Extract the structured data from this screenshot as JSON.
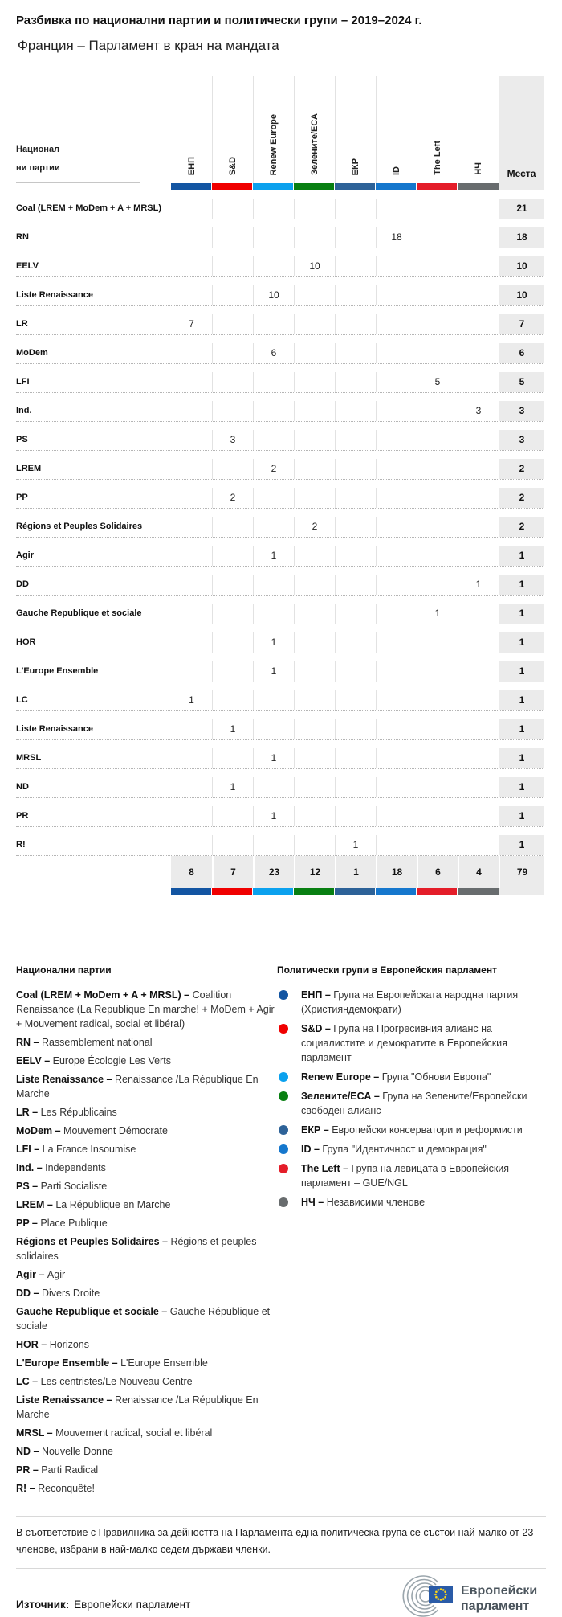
{
  "header": {
    "title": "Разбивка по национални партии и политически групи – 2019–2024 г.",
    "subtitle": "Франция – Парламент в края на мандата"
  },
  "chart_data": {
    "type": "table",
    "title": "Разбивка по национални партии и политически групи – 2019–2024 г.",
    "subtitle": "Франция – Парламент в края на мандата",
    "row_header": "Национални партии",
    "seats_header": "Места",
    "groups": [
      {
        "abbr": "ЕНП",
        "color": "#1355a2"
      },
      {
        "abbr": "S&D",
        "color": "#f00000"
      },
      {
        "abbr": "Renew Europe",
        "color": "#0ba1ee"
      },
      {
        "abbr": "Зелените/ЕСА",
        "color": "#087f12"
      },
      {
        "abbr": "ЕКР",
        "color": "#2d6298"
      },
      {
        "abbr": "ID",
        "color": "#1577cd"
      },
      {
        "abbr": "The Left",
        "color": "#e41d29"
      },
      {
        "abbr": "НЧ",
        "color": "#686c6e"
      }
    ],
    "rows": [
      {
        "label": "Coal (LREM + MoDem + A + MRSL)",
        "group": null,
        "value": null,
        "seats": 21
      },
      {
        "label": "RN",
        "group": "ID",
        "value": 18,
        "seats": 18
      },
      {
        "label": "EELV",
        "group": "Зелените/ЕСА",
        "value": 10,
        "seats": 10
      },
      {
        "label": "Liste Renaissance",
        "group": "Renew Europe",
        "value": 10,
        "seats": 10
      },
      {
        "label": "LR",
        "group": "ЕНП",
        "value": 7,
        "seats": 7
      },
      {
        "label": "MoDem",
        "group": "Renew Europe",
        "value": 6,
        "seats": 6
      },
      {
        "label": "LFI",
        "group": "The Left",
        "value": 5,
        "seats": 5
      },
      {
        "label": "Ind.",
        "group": "НЧ",
        "value": 3,
        "seats": 3
      },
      {
        "label": "PS",
        "group": "S&D",
        "value": 3,
        "seats": 3
      },
      {
        "label": "LREM",
        "group": "Renew Europe",
        "value": 2,
        "seats": 2
      },
      {
        "label": "PP",
        "group": "S&D",
        "value": 2,
        "seats": 2
      },
      {
        "label": "Régions et Peuples Solidaires",
        "group": "Зелените/ЕСА",
        "value": 2,
        "seats": 2
      },
      {
        "label": "Agir",
        "group": "Renew Europe",
        "value": 1,
        "seats": 1
      },
      {
        "label": "DD",
        "group": "НЧ",
        "value": 1,
        "seats": 1
      },
      {
        "label": "Gauche Republique et sociale",
        "group": "The Left",
        "value": 1,
        "seats": 1
      },
      {
        "label": "HOR",
        "group": "Renew Europe",
        "value": 1,
        "seats": 1
      },
      {
        "label": "L'Europe Ensemble",
        "group": "Renew Europe",
        "value": 1,
        "seats": 1
      },
      {
        "label": "LC",
        "group": "ЕНП",
        "value": 1,
        "seats": 1
      },
      {
        "label": "Liste Renaissance",
        "group": "S&D",
        "value": 1,
        "seats": 1
      },
      {
        "label": "MRSL",
        "group": "Renew Europe",
        "value": 1,
        "seats": 1
      },
      {
        "label": "ND",
        "group": "S&D",
        "value": 1,
        "seats": 1
      },
      {
        "label": "PR",
        "group": "Renew Europe",
        "value": 1,
        "seats": 1
      },
      {
        "label": "R!",
        "group": "ЕКР",
        "value": 1,
        "seats": 1
      }
    ],
    "totals": {
      "values": [
        8,
        7,
        23,
        12,
        1,
        18,
        6,
        4
      ],
      "seats": 79
    }
  },
  "legend_parties": {
    "heading": "Национални партии",
    "entries": [
      {
        "abbr": "Coal (LREM + MoDem + A + MRSL)",
        "name": "Coalition Renaissance (La Republique En marche! + MoDem + Agir + Mouvement radical, social et libéral)"
      },
      {
        "abbr": "RN",
        "name": "Rassemblement national"
      },
      {
        "abbr": "EELV",
        "name": "Europe Écologie Les Verts"
      },
      {
        "abbr": "Liste Renaissance",
        "name": "Renaissance /La République En Marche"
      },
      {
        "abbr": "LR",
        "name": "Les Républicains"
      },
      {
        "abbr": "MoDem",
        "name": "Mouvement Démocrate"
      },
      {
        "abbr": "LFI",
        "name": "La France Insoumise"
      },
      {
        "abbr": "Ind.",
        "name": "Independents"
      },
      {
        "abbr": "PS",
        "name": "Parti Socialiste"
      },
      {
        "abbr": "LREM",
        "name": "La République en Marche"
      },
      {
        "abbr": "PP",
        "name": "Place Publique"
      },
      {
        "abbr": "Régions et Peuples Solidaires",
        "name": "Régions et peuples solidaires"
      },
      {
        "abbr": "Agir",
        "name": "Agir"
      },
      {
        "abbr": "DD",
        "name": "Divers Droite"
      },
      {
        "abbr": "Gauche Republique et sociale",
        "name": "Gauche République et sociale"
      },
      {
        "abbr": "HOR",
        "name": "Horizons"
      },
      {
        "abbr": "L'Europe Ensemble",
        "name": "L'Europe Ensemble"
      },
      {
        "abbr": "LC",
        "name": "Les centristes/Le Nouveau Centre"
      },
      {
        "abbr": "Liste Renaissance",
        "name": "Renaissance /La République En Marche"
      },
      {
        "abbr": "MRSL",
        "name": "Mouvement radical, social et libéral"
      },
      {
        "abbr": "ND",
        "name": "Nouvelle Donne"
      },
      {
        "abbr": "PR",
        "name": "Parti Radical"
      },
      {
        "abbr": "R!",
        "name": "Reconquête!"
      }
    ]
  },
  "legend_groups": {
    "heading": "Политически групи в Европейския парламент",
    "entries": [
      {
        "abbr": "ЕНП",
        "color": "#1355a2",
        "name": "Група на Европейската народна партия (Християндемократи)"
      },
      {
        "abbr": "S&D",
        "color": "#f00000",
        "name": "Група на Прогресивния алианс на социалистите и демократите в Европейския парламент"
      },
      {
        "abbr": "Renew Europe",
        "color": "#0ba1ee",
        "name": "Група \"Обнови Европа\""
      },
      {
        "abbr": "Зелените/ЕСА",
        "color": "#087f12",
        "name": "Група на Зелените/Европейски свободен алианс"
      },
      {
        "abbr": "ЕКР",
        "color": "#2d6298",
        "name": "Европейски консерватори и реформисти"
      },
      {
        "abbr": "ID",
        "color": "#1577cd",
        "name": "Група \"Идентичност и демокрация\""
      },
      {
        "abbr": "The Left",
        "color": "#e41d29",
        "name": "Група на левицата в Европейския парламент – GUE/NGL"
      },
      {
        "abbr": "НЧ",
        "color": "#686c6e",
        "name": "Независими членове"
      }
    ]
  },
  "footer": {
    "note": "В съответствие с Правилника за дейността на Парламента една политическа група се състои най-малко от 23 членове, избрани в най-малко седем държави членки.",
    "source_label": "Източник:",
    "source": "Европейски парламент",
    "logo_line1": "Европейски",
    "logo_line2": "парламент"
  }
}
